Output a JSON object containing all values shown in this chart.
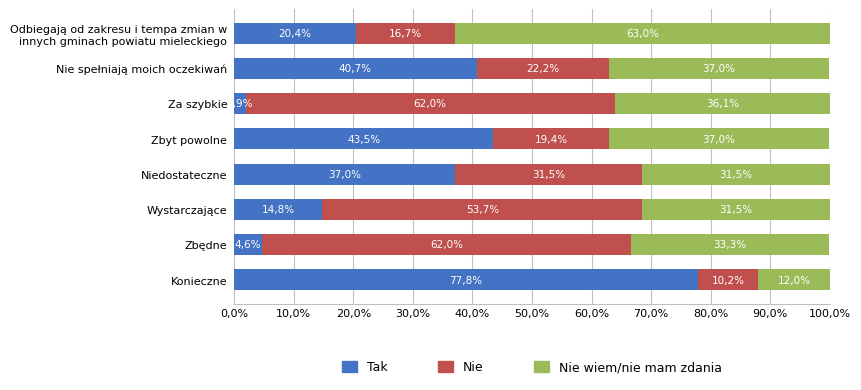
{
  "categories": [
    "Odbiegają od zakresu i tempa zmian w\ninnych gminach powiatu mieleckiego",
    "Nie spełniają moich oczekiwań",
    "Za szybkie",
    "Zbyt powolne",
    "Niedostateczne",
    "Wystarczające",
    "Zbędne",
    "Konieczne"
  ],
  "tak": [
    20.4,
    40.7,
    1.9,
    43.5,
    37.0,
    14.8,
    4.6,
    77.8
  ],
  "nie": [
    16.7,
    22.2,
    62.0,
    19.4,
    31.5,
    53.7,
    62.0,
    10.2
  ],
  "nie_wiem": [
    63.0,
    37.0,
    36.1,
    37.0,
    31.5,
    31.5,
    33.3,
    12.0
  ],
  "tak_labels": [
    "20,4%",
    "40,7%",
    "1,9%",
    "43,5%",
    "37,0%",
    "14,8%",
    "4,6%",
    "77,8%"
  ],
  "nie_labels": [
    "16,7%",
    "22,2%",
    "62,0%",
    "19,4%",
    "31,5%",
    "53,7%",
    "62,0%",
    "10,2%"
  ],
  "nie_wiem_labels": [
    "63,0%",
    "37,0%",
    "36,1%",
    "37,0%",
    "31,5%",
    "31,5%",
    "33,3%",
    "12,0%"
  ],
  "color_tak": "#4472C4",
  "color_nie": "#C0504D",
  "color_nie_wiem": "#9BBB59",
  "legend_tak": "Tak",
  "legend_nie": "Nie",
  "legend_nie_wiem": "Nie wiem/nie mam zdania",
  "xlabel_ticks": [
    "0,0%",
    "10,0%",
    "20,0%",
    "30,0%",
    "40,0%",
    "50,0%",
    "60,0%",
    "70,0%",
    "80,0%",
    "90,0%",
    "100,0%"
  ],
  "xlabel_vals": [
    0,
    10,
    20,
    30,
    40,
    50,
    60,
    70,
    80,
    90,
    100
  ],
  "background_color": "#FFFFFF",
  "grid_color": "#BFBFBF",
  "label_fontsize": 7.5,
  "category_fontsize": 8,
  "tick_fontsize": 8
}
